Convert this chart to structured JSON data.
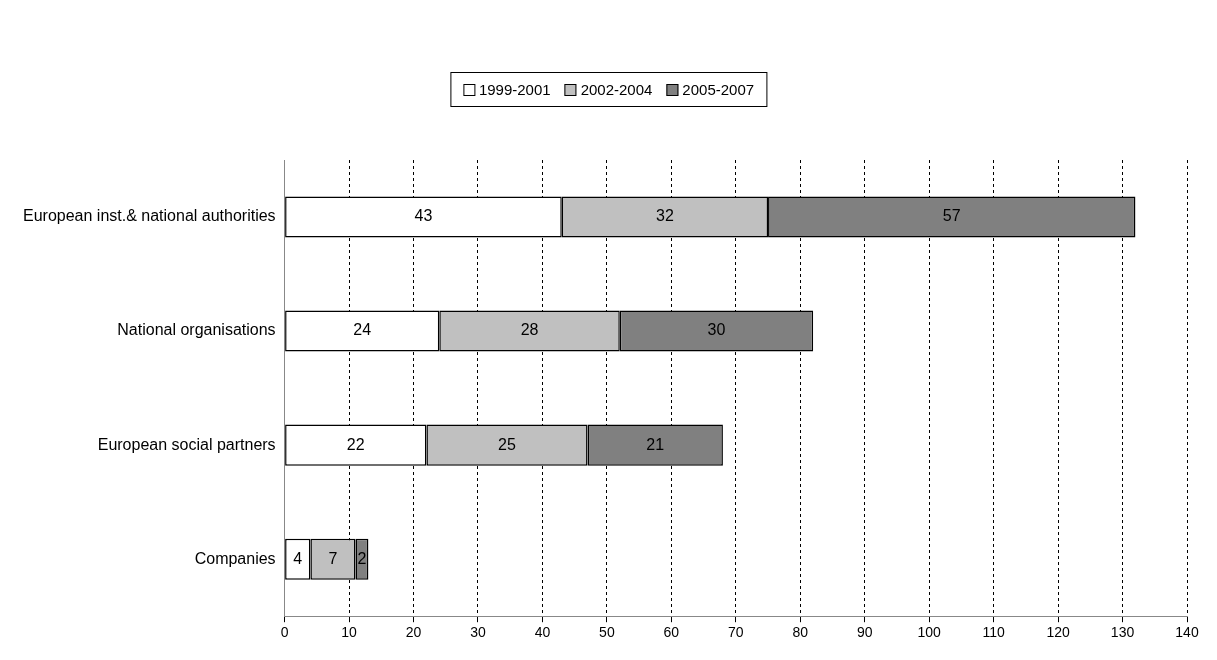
{
  "chart_data": {
    "type": "bar",
    "orientation": "horizontal",
    "stacked": true,
    "categories": [
      "European inst.& national authorities",
      "National organisations",
      "European social partners",
      "Companies"
    ],
    "series": [
      {
        "name": "1999-2001",
        "color": "#ffffff",
        "values": [
          43,
          24,
          22,
          4
        ]
      },
      {
        "name": "2002-2004",
        "color": "#c0c0c0",
        "values": [
          32,
          28,
          25,
          7
        ]
      },
      {
        "name": "2005-2007",
        "color": "#808080",
        "values": [
          57,
          30,
          21,
          2
        ]
      }
    ],
    "xlim": [
      0,
      140
    ],
    "xticks": [
      0,
      10,
      20,
      30,
      40,
      50,
      60,
      70,
      80,
      90,
      100,
      110,
      120,
      130,
      140
    ],
    "grid": "x",
    "legend": "top",
    "data_labels": true
  }
}
